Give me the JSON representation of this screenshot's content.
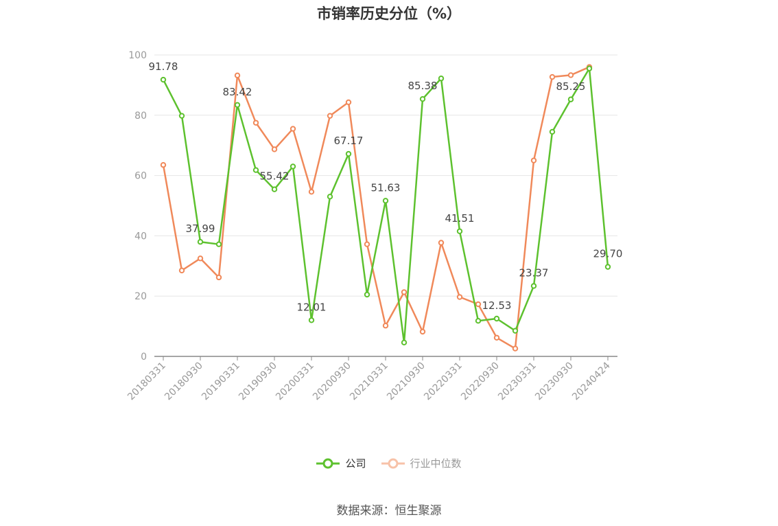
{
  "chart_data": {
    "type": "line",
    "title": "市销率历史分位（%）",
    "x_tick_labels": [
      "20180331",
      "20180930",
      "20190331",
      "20190930",
      "20200331",
      "20200930",
      "20210331",
      "20210930",
      "20220331",
      "20220930",
      "20230331",
      "20230930",
      "20240424"
    ],
    "x": [
      "20180331",
      "20180630",
      "20180930",
      "20181231",
      "20190331",
      "20190630",
      "20190930",
      "20191231",
      "20200331",
      "20200630",
      "20200930",
      "20201231",
      "20210331",
      "20210630",
      "20210930",
      "20211231",
      "20220331",
      "20220630",
      "20220930",
      "20221231",
      "20230331",
      "20230630",
      "20230930",
      "20231231",
      "20240424"
    ],
    "ylim": [
      0,
      100
    ],
    "y_ticks": [
      0,
      20,
      40,
      60,
      80,
      100
    ],
    "grid": true,
    "legend_position": "bottom",
    "series": [
      {
        "name": "公司",
        "color": "#5dc12e",
        "values": [
          91.78,
          79.8,
          37.99,
          37.2,
          83.42,
          61.8,
          55.42,
          63.0,
          12.01,
          53.0,
          67.17,
          20.5,
          51.63,
          4.6,
          85.38,
          92.2,
          41.51,
          11.8,
          12.53,
          8.5,
          23.37,
          74.5,
          85.25,
          95.5,
          29.7
        ],
        "data_labels": {
          "0": "91.78",
          "2": "37.99",
          "4": "83.42",
          "6": "55.42",
          "8": "12.01",
          "10": "67.17",
          "12": "51.63",
          "14": "85.38",
          "16": "41.51",
          "18": "12.53",
          "20": "23.37",
          "22": "85.25",
          "24": "29.70"
        }
      },
      {
        "name": "行业中位数",
        "color": "#f0895a",
        "values": [
          63.5,
          28.5,
          32.5,
          26.2,
          93.2,
          77.5,
          68.7,
          75.5,
          54.6,
          79.8,
          84.3,
          37.2,
          10.2,
          21.3,
          8.2,
          37.7,
          19.7,
          17.3,
          6.2,
          2.6,
          65.0,
          92.7,
          93.3,
          96.0,
          null
        ]
      }
    ]
  },
  "source": "数据来源：恒生聚源"
}
